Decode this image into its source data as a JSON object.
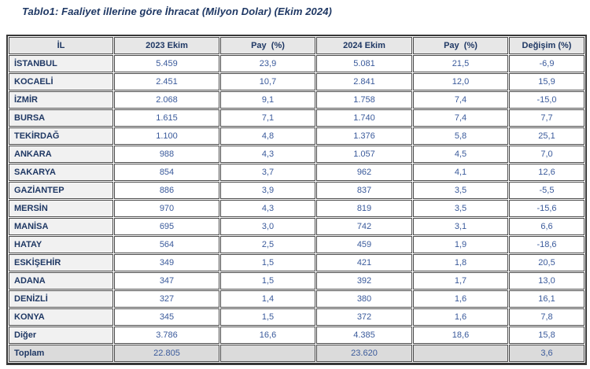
{
  "title": "Tablo1: Faaliyet illerine göre İhracat (Milyon Dolar) (Ekim 2024)",
  "colors": {
    "title_text": "#1F3864",
    "header_bg": "#E7E7E7",
    "row_label_bg": "#F1F1F1",
    "total_row_bg": "#DBDBDB",
    "label_text": "#1F3864",
    "number_text": "#3A5A9B",
    "grid_border": "#4A4A4A"
  },
  "table": {
    "columns": [
      "İL",
      "2023 Ekim",
      "Pay  (%)",
      "2024 Ekim",
      "Pay  (%)",
      "Değişim (%)"
    ],
    "rows": [
      {
        "type": "data",
        "il": "İSTANBUL",
        "v2023": "5.459",
        "pay2023": "23,9",
        "v2024": "5.081",
        "pay2024": "21,5",
        "degisim": "-6,9"
      },
      {
        "type": "data",
        "il": "KOCAELİ",
        "v2023": "2.451",
        "pay2023": "10,7",
        "v2024": "2.841",
        "pay2024": "12,0",
        "degisim": "15,9"
      },
      {
        "type": "data",
        "il": "İZMİR",
        "v2023": "2.068",
        "pay2023": "9,1",
        "v2024": "1.758",
        "pay2024": "7,4",
        "degisim": "-15,0"
      },
      {
        "type": "data",
        "il": "BURSA",
        "v2023": "1.615",
        "pay2023": "7,1",
        "v2024": "1.740",
        "pay2024": "7,4",
        "degisim": "7,7"
      },
      {
        "type": "data",
        "il": "TEKİRDAĞ",
        "v2023": "1.100",
        "pay2023": "4,8",
        "v2024": "1.376",
        "pay2024": "5,8",
        "degisim": "25,1"
      },
      {
        "type": "data",
        "il": "ANKARA",
        "v2023": "988",
        "pay2023": "4,3",
        "v2024": "1.057",
        "pay2024": "4,5",
        "degisim": "7,0"
      },
      {
        "type": "data",
        "il": "SAKARYA",
        "v2023": "854",
        "pay2023": "3,7",
        "v2024": "962",
        "pay2024": "4,1",
        "degisim": "12,6"
      },
      {
        "type": "data",
        "il": "GAZİANTEP",
        "v2023": "886",
        "pay2023": "3,9",
        "v2024": "837",
        "pay2024": "3,5",
        "degisim": "-5,5"
      },
      {
        "type": "data",
        "il": "MERSİN",
        "v2023": "970",
        "pay2023": "4,3",
        "v2024": "819",
        "pay2024": "3,5",
        "degisim": "-15,6"
      },
      {
        "type": "data",
        "il": "MANİSA",
        "v2023": "695",
        "pay2023": "3,0",
        "v2024": "742",
        "pay2024": "3,1",
        "degisim": "6,6"
      },
      {
        "type": "data",
        "il": "HATAY",
        "v2023": "564",
        "pay2023": "2,5",
        "v2024": "459",
        "pay2024": "1,9",
        "degisim": "-18,6"
      },
      {
        "type": "data",
        "il": "ESKİŞEHİR",
        "v2023": "349",
        "pay2023": "1,5",
        "v2024": "421",
        "pay2024": "1,8",
        "degisim": "20,5"
      },
      {
        "type": "data",
        "il": "ADANA",
        "v2023": "347",
        "pay2023": "1,5",
        "v2024": "392",
        "pay2024": "1,7",
        "degisim": "13,0"
      },
      {
        "type": "data",
        "il": "DENİZLİ",
        "v2023": "327",
        "pay2023": "1,4",
        "v2024": "380",
        "pay2024": "1,6",
        "degisim": "16,1"
      },
      {
        "type": "data",
        "il": "KONYA",
        "v2023": "345",
        "pay2023": "1,5",
        "v2024": "372",
        "pay2024": "1,6",
        "degisim": "7,8"
      },
      {
        "type": "data",
        "il": "Diğer",
        "v2023": "3.786",
        "pay2023": "16,6",
        "v2024": "4.385",
        "pay2024": "18,6",
        "degisim": "15,8"
      },
      {
        "type": "total",
        "il": "Toplam",
        "v2023": "22.805",
        "pay2023": "",
        "v2024": "23.620",
        "pay2024": "",
        "degisim": "3,6"
      }
    ]
  }
}
